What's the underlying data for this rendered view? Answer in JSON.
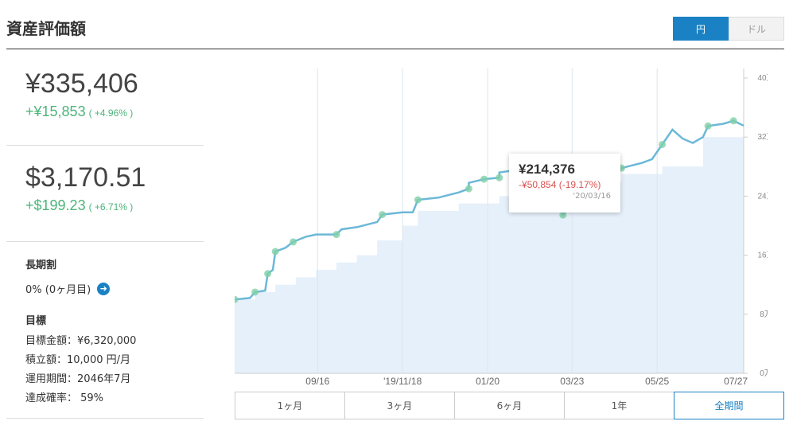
{
  "header": {
    "title": "資産評価額",
    "currency_options": [
      "円",
      "ドル"
    ],
    "currency_selected": "円"
  },
  "summary": {
    "yen_value": "¥335,406",
    "yen_change": "+¥15,853",
    "yen_change_pct": "( +4.96% )",
    "usd_value": "$3,170.51",
    "usd_change": "+$199.23",
    "usd_change_pct": "( +6.71% )"
  },
  "longterm": {
    "title": "長期割",
    "value": "0% (0ヶ月目)"
  },
  "goal": {
    "title": "目標",
    "items": [
      "目標金額：¥6,320,000",
      "積立額：10,000 円/月",
      "運用期間：2046年7月",
      "達成確率： 59%"
    ]
  },
  "tooltip": {
    "value": "¥214,376",
    "change": "-¥50,854 (-19.17%)",
    "date": "'20/03/16"
  },
  "ranges": [
    "1ヶ月",
    "3ヶ月",
    "6ヶ月",
    "1年",
    "全期間"
  ],
  "range_selected": "全期間",
  "colors": {
    "accent": "#1a82c4",
    "positive": "#4cb57a",
    "negative": "#d9534f",
    "line": "#6cb8d8",
    "area": "#e6f0fa"
  },
  "chart_data": {
    "type": "area",
    "ylabel_ticks": [
      "0万",
      "8万",
      "16万",
      "24万",
      "32万",
      "40万"
    ],
    "y_tick_values": [
      0,
      80000,
      160000,
      240000,
      320000,
      400000
    ],
    "ylim": [
      0,
      400000
    ],
    "x_tick_labels": [
      "09/16",
      "'19/11/18",
      "01/20",
      "03/23",
      "05/25",
      "07/27"
    ],
    "x_tick_positions": [
      0.163,
      0.33,
      0.497,
      0.663,
      0.83,
      0.997
    ],
    "series": [
      {
        "values": [
          [
            0.0,
            100000
          ],
          [
            0.03,
            102000
          ],
          [
            0.04,
            110000
          ],
          [
            0.06,
            112000
          ],
          [
            0.065,
            135000
          ],
          [
            0.075,
            140000
          ],
          [
            0.08,
            165000
          ],
          [
            0.1,
            170000
          ],
          [
            0.115,
            178000
          ],
          [
            0.14,
            185000
          ],
          [
            0.16,
            188000
          ],
          [
            0.2,
            188000
          ],
          [
            0.21,
            195000
          ],
          [
            0.24,
            198000
          ],
          [
            0.28,
            205000
          ],
          [
            0.29,
            215000
          ],
          [
            0.33,
            218000
          ],
          [
            0.35,
            218000
          ],
          [
            0.36,
            235000
          ],
          [
            0.4,
            238000
          ],
          [
            0.44,
            245000
          ],
          [
            0.46,
            250000
          ],
          [
            0.46,
            258000
          ],
          [
            0.49,
            263000
          ],
          [
            0.52,
            265000
          ],
          [
            0.52,
            272000
          ],
          [
            0.56,
            276000
          ],
          [
            0.6,
            282000
          ],
          [
            0.62,
            285000
          ],
          [
            0.64,
            245000
          ],
          [
            0.645,
            214376
          ],
          [
            0.66,
            230000
          ],
          [
            0.67,
            245000
          ],
          [
            0.7,
            255000
          ],
          [
            0.72,
            262000
          ],
          [
            0.73,
            275000
          ],
          [
            0.76,
            278000
          ],
          [
            0.8,
            285000
          ],
          [
            0.82,
            290000
          ],
          [
            0.84,
            310000
          ],
          [
            0.86,
            330000
          ],
          [
            0.88,
            318000
          ],
          [
            0.9,
            312000
          ],
          [
            0.92,
            320000
          ],
          [
            0.93,
            335000
          ],
          [
            0.96,
            338000
          ],
          [
            0.98,
            342000
          ],
          [
            1.0,
            335406
          ]
        ]
      },
      {
        "steps": [
          [
            0.0,
            100000
          ],
          [
            0.04,
            110000
          ],
          [
            0.08,
            120000
          ],
          [
            0.12,
            130000
          ],
          [
            0.16,
            140000
          ],
          [
            0.2,
            150000
          ],
          [
            0.24,
            160000
          ],
          [
            0.28,
            180000
          ],
          [
            0.33,
            200000
          ],
          [
            0.36,
            220000
          ],
          [
            0.44,
            230000
          ],
          [
            0.52,
            240000
          ],
          [
            0.6,
            250000
          ],
          [
            0.68,
            260000
          ],
          [
            0.76,
            270000
          ],
          [
            0.84,
            280000
          ],
          [
            0.92,
            320000
          ],
          [
            1.0,
            320000
          ]
        ]
      }
    ],
    "markers": [
      0.0,
      0.04,
      0.065,
      0.08,
      0.115,
      0.2,
      0.29,
      0.36,
      0.46,
      0.49,
      0.52,
      0.645,
      0.76,
      0.84,
      0.93,
      0.98
    ],
    "grid": true
  }
}
